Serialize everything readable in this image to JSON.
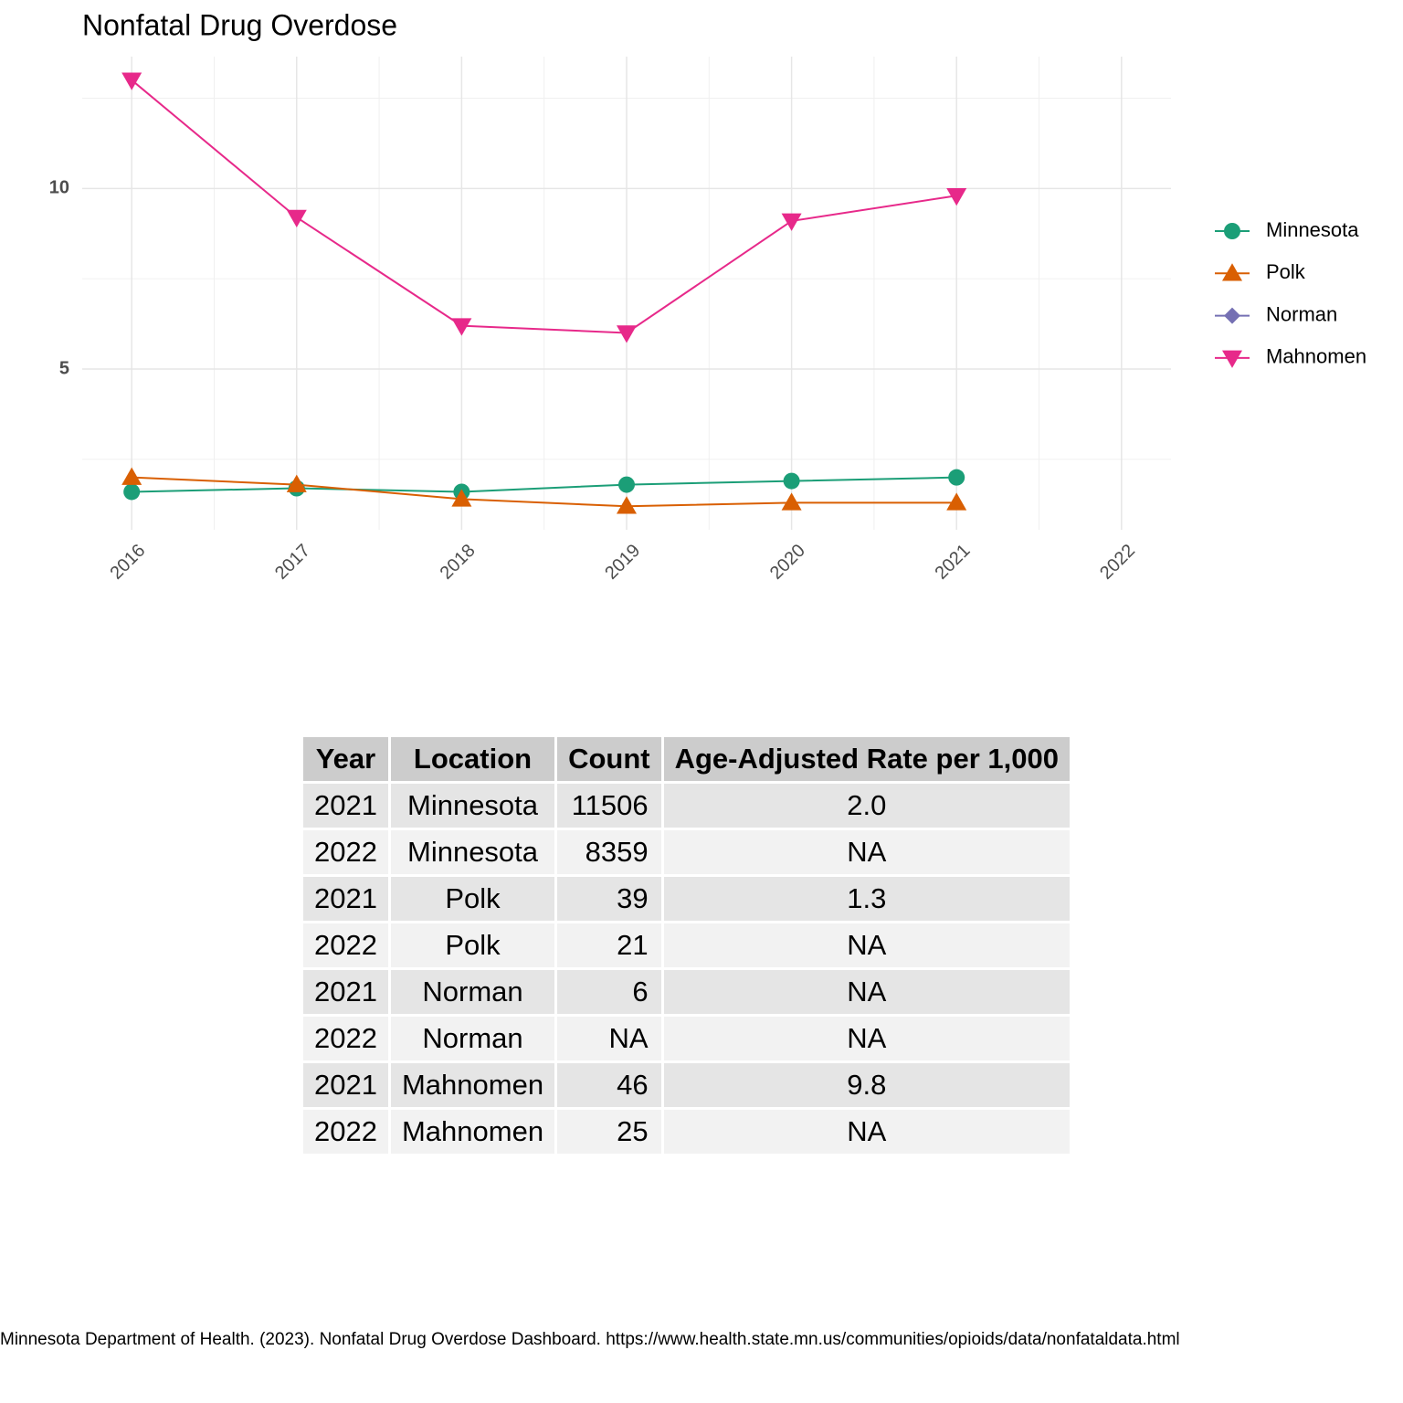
{
  "chart_data": {
    "type": "line",
    "title": "Nonfatal Drug Overdose",
    "x": [
      2016,
      2017,
      2018,
      2019,
      2020,
      2021
    ],
    "series": [
      {
        "name": "Minnesota",
        "color": "#1b9e77",
        "marker": "circle",
        "values": [
          1.6,
          1.7,
          1.6,
          1.8,
          1.9,
          2.0
        ]
      },
      {
        "name": "Polk",
        "color": "#d95f02",
        "marker": "triangle-up",
        "values": [
          2.0,
          1.8,
          1.4,
          1.2,
          1.3,
          1.3
        ]
      },
      {
        "name": "Norman",
        "color": "#7570b3",
        "marker": "diamond",
        "values": [
          null,
          null,
          null,
          null,
          null,
          null
        ]
      },
      {
        "name": "Mahnomen",
        "color": "#e7298a",
        "marker": "triangle-down",
        "values": [
          13.0,
          9.2,
          6.2,
          6.0,
          9.1,
          9.8
        ]
      }
    ],
    "xlim": [
      2015.7,
      2022.3
    ],
    "xticks": [
      2016,
      2017,
      2018,
      2019,
      2020,
      2021,
      2022
    ],
    "ylim": [
      0.55,
      13.65
    ],
    "yticks": [
      5,
      10
    ],
    "grid": true,
    "legend": "right"
  },
  "table": {
    "header": [
      "Year",
      "Location",
      "Count",
      "Age-Adjusted Rate per 1,000"
    ],
    "rows": [
      [
        "2021",
        "Minnesota",
        "11506",
        "2.0"
      ],
      [
        "2022",
        "Minnesota",
        "8359",
        "NA"
      ],
      [
        "2021",
        "Polk",
        "39",
        "1.3"
      ],
      [
        "2022",
        "Polk",
        "21",
        "NA"
      ],
      [
        "2021",
        "Norman",
        "6",
        "NA"
      ],
      [
        "2022",
        "Norman",
        "NA",
        "NA"
      ],
      [
        "2021",
        "Mahnomen",
        "46",
        "9.8"
      ],
      [
        "2022",
        "Mahnomen",
        "25",
        "NA"
      ]
    ]
  },
  "source": "Minnesota Department of Health. (2023). Nonfatal Drug Overdose Dashboard. https://www.health.state.mn.us/communities/opioids/data/nonfataldata.html"
}
